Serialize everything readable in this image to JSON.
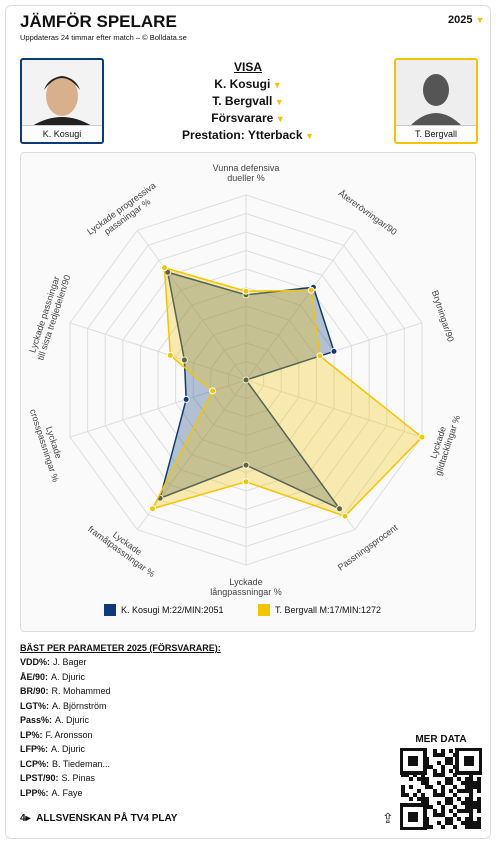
{
  "header": {
    "title": "JÄMFÖR SPELARE",
    "subtitle": "Uppdateras 24 timmar efter match – © Bolldata.se",
    "season": "2025"
  },
  "players": [
    {
      "name": "K. Kosugi"
    },
    {
      "name": "T. Bergvall"
    }
  ],
  "menu": {
    "title": "VISA",
    "items": [
      "K. Kosugi",
      "T. Bergvall",
      "Försvarare",
      "Prestation: Ytterback"
    ]
  },
  "chart_data": {
    "type": "radar",
    "categories": [
      "Vunna defensiva\ndueller %",
      "Återerövringar/90",
      "Brytningar/90",
      "Lyckade\nglidtacklingar %",
      "Passningsprocent",
      "Lyckade\nlångpassningar %",
      "Lyckade\nframåtpassningar %",
      "Lyckade\ncrosspassningar %",
      "Lyckade passningar\ntill sista tredjedelen/90",
      "Lyckade progressiva\npassningar %"
    ],
    "ylim": [
      0,
      100
    ],
    "grid": true,
    "series": [
      {
        "name": "K. Kosugi M:22/MIN:2051",
        "color": "#0d3b7a",
        "values": [
          46,
          62,
          50,
          0,
          86,
          46,
          79,
          34,
          35,
          72
        ]
      },
      {
        "name": "T. Bergvall M:17/MIN:1272",
        "color": "#f5c400",
        "values": [
          48,
          60,
          42,
          100,
          91,
          55,
          86,
          19,
          43,
          75
        ]
      }
    ]
  },
  "best": {
    "title": "BÄST PER PARAMETER 2025 (FÖRSVARARE):",
    "items": [
      {
        "key": "VDD%:",
        "player": "J. Bager"
      },
      {
        "key": "ÅE/90:",
        "player": "A. Djuric"
      },
      {
        "key": "BR/90:",
        "player": "R. Mohammed"
      },
      {
        "key": "LGT%:",
        "player": "A. Björnström"
      },
      {
        "key": "Pass%:",
        "player": "A. Djuric"
      },
      {
        "key": "LP%:",
        "player": "F. Aronsson"
      },
      {
        "key": "LFP%:",
        "player": "A. Djuric"
      },
      {
        "key": "LCP%:",
        "player": "B. Tiedeman..."
      },
      {
        "key": "LPST/90:",
        "player": "S. Pinas"
      },
      {
        "key": "LPP%:",
        "player": "A. Faye"
      }
    ]
  },
  "qr": {
    "title": "MER DATA"
  },
  "footer": {
    "text": "ALLSVENSKAN PÅ TV4 PLAY"
  }
}
